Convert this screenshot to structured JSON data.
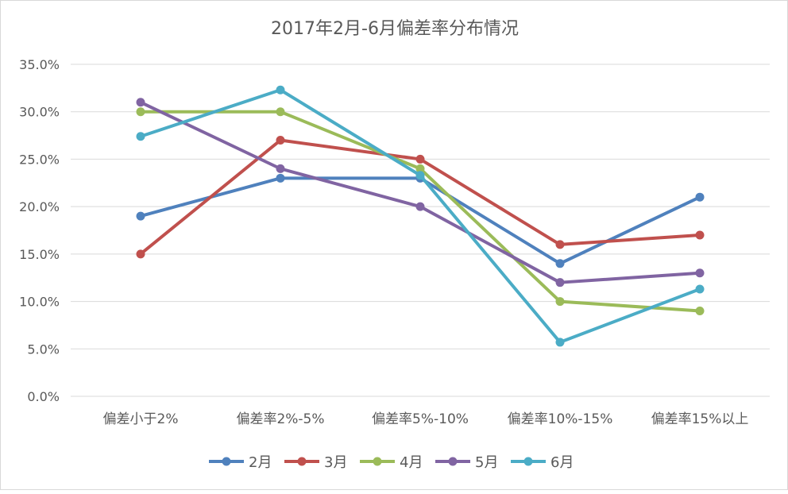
{
  "chart_data": {
    "type": "line",
    "title": "2017年2月-6月偏差率分布情况",
    "categories": [
      "偏差小于2%",
      "偏差率2%-5%",
      "偏差率5%-10%",
      "偏差率10%-15%",
      "偏差率15%以上"
    ],
    "ylim": [
      0,
      35
    ],
    "yticks": [
      "0.0%",
      "5.0%",
      "10.0%",
      "15.0%",
      "20.0%",
      "25.0%",
      "30.0%",
      "35.0%"
    ],
    "y_unit": "%",
    "grid": true,
    "legend_position": "bottom",
    "series": [
      {
        "name": "2月",
        "color": "#4f81bd",
        "values": [
          19,
          23,
          23,
          14,
          21
        ]
      },
      {
        "name": "3月",
        "color": "#c0504d",
        "values": [
          15,
          27,
          25,
          16,
          17
        ]
      },
      {
        "name": "4月",
        "color": "#9bbb59",
        "values": [
          30,
          30,
          24,
          10,
          9
        ]
      },
      {
        "name": "5月",
        "color": "#8064a2",
        "values": [
          31,
          24,
          20,
          12,
          13
        ]
      },
      {
        "name": "6月",
        "color": "#4bacc6",
        "values": [
          27.4,
          32.3,
          23.3,
          5.7,
          11.3
        ]
      }
    ]
  }
}
